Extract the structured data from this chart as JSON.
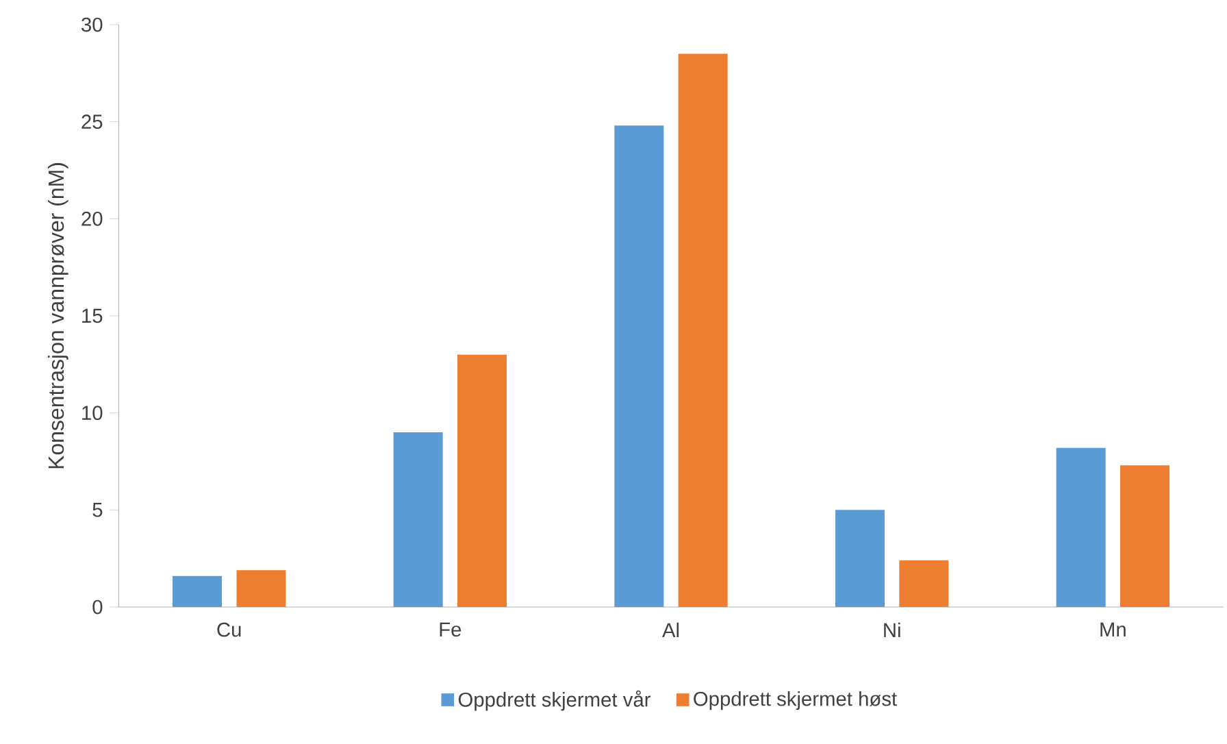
{
  "chart_data": {
    "type": "bar",
    "ylabel": "Konsentrasjon vannprøver (nM)",
    "categories": [
      "Cu",
      "Fe",
      "Al",
      "Ni",
      "Mn"
    ],
    "series": [
      {
        "name": "Oppdrett skjermet vår",
        "color": "#5b9bd5",
        "values": [
          1.6,
          9.0,
          24.8,
          5.0,
          8.2
        ]
      },
      {
        "name": "Oppdrett skjermet høst",
        "color": "#ed7d31",
        "values": [
          1.9,
          13.0,
          28.5,
          2.4,
          7.3
        ]
      }
    ],
    "ylim": [
      0,
      30
    ],
    "yticks": [
      0,
      5,
      10,
      15,
      20,
      25,
      30
    ],
    "legend": "bottom"
  }
}
